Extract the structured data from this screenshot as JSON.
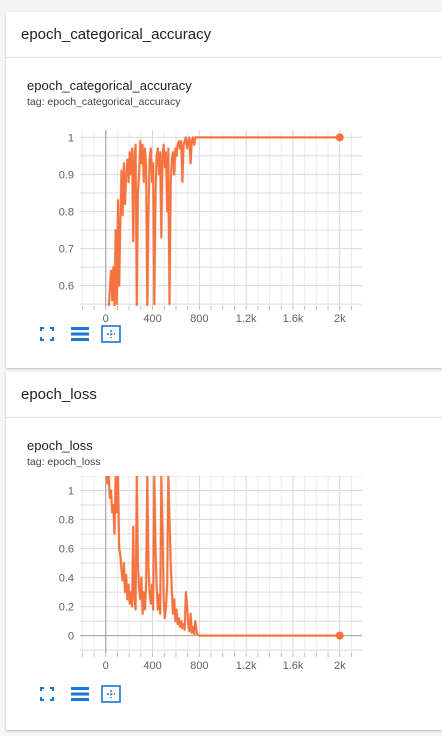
{
  "cards": [
    {
      "header": "epoch_categorical_accuracy",
      "title": "epoch_categorical_accuracy",
      "tag": "tag: epoch_categorical_accuracy"
    },
    {
      "header": "epoch_loss",
      "title": "epoch_loss",
      "tag": "tag: epoch_loss"
    }
  ],
  "toolbar": {
    "icons": [
      "fit-to-screen-icon",
      "toggle-log-scale-icon",
      "reset-zoom-icon"
    ],
    "color": "#1976d2"
  },
  "chart_data": [
    {
      "type": "line",
      "xlim": [
        -220,
        2190
      ],
      "ylim": [
        0.545,
        1.02
      ],
      "x_ticks": [
        0,
        400,
        800,
        1200,
        1600,
        2000
      ],
      "x_tick_labels": [
        "0",
        "400",
        "800",
        "1.2k",
        "1.6k",
        "2k"
      ],
      "y_ticks": [
        0.6,
        0.7,
        0.8,
        0.9,
        1.0
      ],
      "y_tick_labels": [
        "0.6",
        "0.7",
        "0.8",
        "0.9",
        "1"
      ],
      "color": "#f4733f",
      "raw_color": "#f9c9b4",
      "grid": true,
      "end_marker": [
        2000,
        1.0
      ],
      "series": [
        {
          "x": [
            25,
            45,
            55,
            65,
            75,
            85,
            95,
            105,
            115,
            125,
            135,
            145,
            155,
            165,
            175,
            185,
            195,
            205,
            215,
            225,
            235,
            245,
            255,
            265,
            275,
            285,
            295,
            305,
            315,
            325,
            335,
            345,
            355,
            365,
            375,
            385,
            395,
            405,
            415,
            425,
            435,
            445,
            455,
            465,
            475,
            485,
            495,
            505,
            515,
            525,
            535,
            545,
            555,
            565,
            575,
            585,
            595,
            605,
            615,
            625,
            635,
            645,
            655,
            665,
            675,
            685,
            695,
            705,
            715,
            725,
            735,
            745,
            755,
            765,
            780,
            800,
            1000,
            1200,
            1400,
            1600,
            1800,
            2000
          ],
          "y": [
            0.54,
            0.64,
            0.56,
            0.65,
            0.54,
            0.75,
            0.55,
            0.83,
            0.6,
            0.78,
            0.91,
            0.79,
            0.93,
            0.82,
            0.9,
            0.94,
            0.88,
            0.96,
            0.9,
            0.97,
            0.72,
            0.95,
            0.98,
            0.54,
            0.85,
            0.9,
            0.99,
            0.93,
            0.98,
            0.88,
            0.97,
            0.92,
            0.54,
            0.8,
            0.94,
            0.97,
            0.88,
            0.93,
            0.55,
            0.85,
            0.95,
            0.97,
            0.9,
            0.96,
            0.73,
            0.95,
            0.98,
            0.92,
            0.96,
            0.8,
            0.97,
            0.55,
            0.88,
            0.94,
            0.96,
            0.9,
            0.97,
            0.95,
            0.98,
            0.99,
            0.97,
            0.99,
            0.88,
            0.98,
            0.99,
            1.0,
            0.97,
            0.99,
            1.0,
            0.93,
            0.99,
            1.0,
            0.98,
            1.0,
            1.0,
            1.0,
            1.0,
            1.0,
            1.0,
            1.0,
            1.0,
            1.0
          ]
        }
      ]
    },
    {
      "type": "line",
      "xlim": [
        -220,
        2190
      ],
      "ylim": [
        -0.12,
        1.1
      ],
      "x_ticks": [
        0,
        400,
        800,
        1200,
        1600,
        2000
      ],
      "x_tick_labels": [
        "0",
        "400",
        "800",
        "1.2k",
        "1.6k",
        "2k"
      ],
      "y_ticks": [
        0,
        0.2,
        0.4,
        0.6,
        0.8,
        1.0
      ],
      "y_tick_labels": [
        "0",
        "0.2",
        "0.4",
        "0.6",
        "0.8",
        "1"
      ],
      "color": "#f4733f",
      "raw_color": "#f9c9b4",
      "grid": true,
      "end_marker": [
        2000,
        0.0
      ],
      "series": [
        {
          "x": [
            5,
            15,
            25,
            35,
            45,
            55,
            65,
            75,
            85,
            95,
            105,
            115,
            125,
            135,
            145,
            155,
            165,
            175,
            185,
            195,
            205,
            215,
            225,
            235,
            245,
            255,
            265,
            275,
            285,
            295,
            305,
            315,
            325,
            335,
            345,
            355,
            365,
            375,
            385,
            395,
            405,
            415,
            425,
            435,
            445,
            455,
            465,
            475,
            485,
            495,
            505,
            515,
            525,
            535,
            545,
            555,
            565,
            575,
            585,
            595,
            605,
            615,
            625,
            635,
            645,
            655,
            665,
            675,
            685,
            695,
            705,
            715,
            725,
            735,
            745,
            755,
            765,
            780,
            800,
            1000,
            1200,
            1400,
            1600,
            1800,
            2000
          ],
          "y": [
            1.1,
            1.05,
            1.1,
            0.95,
            1.0,
            0.85,
            0.9,
            0.7,
            1.1,
            0.85,
            1.1,
            0.6,
            0.55,
            0.45,
            0.38,
            0.5,
            0.3,
            0.42,
            0.25,
            0.35,
            0.22,
            0.3,
            0.2,
            0.75,
            0.25,
            0.18,
            1.1,
            0.5,
            0.32,
            0.25,
            0.4,
            0.15,
            0.3,
            0.18,
            0.35,
            1.1,
            0.45,
            0.3,
            0.22,
            0.35,
            0.18,
            1.1,
            0.6,
            0.35,
            0.18,
            0.28,
            0.15,
            1.1,
            0.75,
            0.25,
            0.12,
            0.2,
            0.35,
            1.1,
            0.8,
            0.5,
            0.3,
            0.15,
            0.25,
            0.1,
            0.18,
            0.08,
            0.12,
            0.06,
            0.1,
            0.05,
            0.08,
            0.04,
            0.3,
            0.2,
            0.08,
            0.03,
            0.15,
            0.02,
            0.06,
            0.01,
            0.1,
            0.01,
            0.0,
            0.0,
            0.0,
            0.0,
            0.0,
            0.0,
            0.0
          ]
        }
      ]
    }
  ]
}
